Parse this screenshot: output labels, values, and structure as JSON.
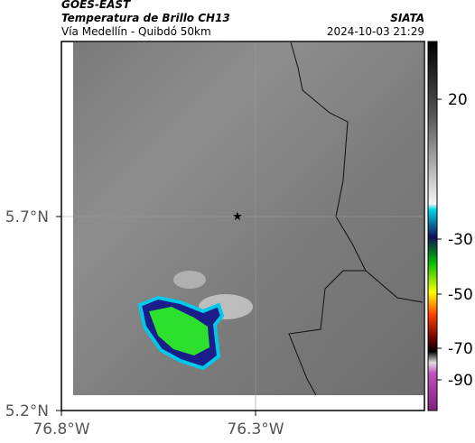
{
  "header": {
    "title": "GOES-EAST",
    "subtitle": "Temperatura de Brillo CH13",
    "location": "Vía Medellín - Quibdó 50km",
    "source": "SIATA",
    "datetime": "2024-10-03 21:29"
  },
  "map": {
    "lat_ticks": [
      "5.7°N",
      "5.2°N"
    ],
    "lon_ticks": [
      "76.8°W",
      "76.3°W"
    ]
  },
  "colorbar": {
    "ticks": [
      "20",
      "-30",
      "-50",
      "-70",
      "-90"
    ]
  }
}
